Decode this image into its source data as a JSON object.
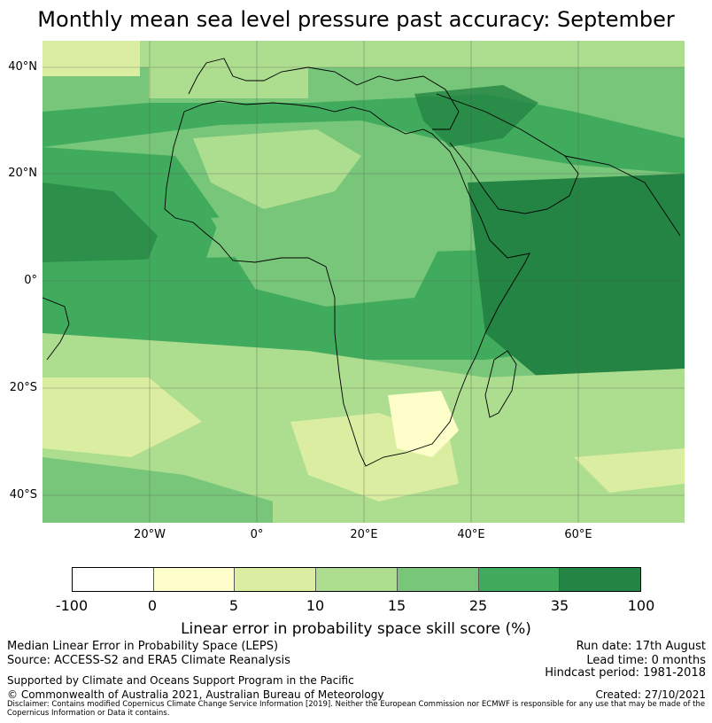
{
  "title": "Monthly mean sea level pressure past accuracy: September",
  "map": {
    "lat_labels": [
      "40°N",
      "20°N",
      "0°",
      "20°S",
      "40°S"
    ],
    "lon_labels": [
      "20°W",
      "0°",
      "20°E",
      "40°E",
      "60°E"
    ],
    "region": "Africa, Europe, Middle East, Indian Ocean",
    "colors": [
      "#ffffff",
      "#fefecb",
      "#daeda0",
      "#addd8e",
      "#78c679",
      "#41ab5d",
      "#238443"
    ]
  },
  "colorbar": {
    "ticks": [
      "-100",
      "0",
      "5",
      "10",
      "15",
      "25",
      "35",
      "100"
    ],
    "label": "Linear error in probability space skill score (%)",
    "colors": [
      "#ffffff",
      "#fefecb",
      "#daeda0",
      "#addd8e",
      "#78c679",
      "#41ab5d",
      "#238443"
    ]
  },
  "footer": {
    "line1": "Median Linear Error in Probability Space (LEPS)",
    "line2": "Source: ACCESS-S2 and ERA5 Climate Reanalysis",
    "line3": "Supported by Climate and Oceans Support Program in the Pacific",
    "line4": "© Commonwealth of Australia 2021, Australian Bureau of Meteorology",
    "run_date": "Run date: 17th August",
    "lead_time": "Lead time: 0 months",
    "hindcast": "Hindcast period: 1981-2018",
    "created": "Created: 27/10/2021",
    "disclaimer": "Disclaimer: Contains modified Copernicus Climate Change Service Information [2019]. Neither the European Commission nor ECMWF is responsible for any use that may be made of the Copernicus Information or Data it contains."
  }
}
